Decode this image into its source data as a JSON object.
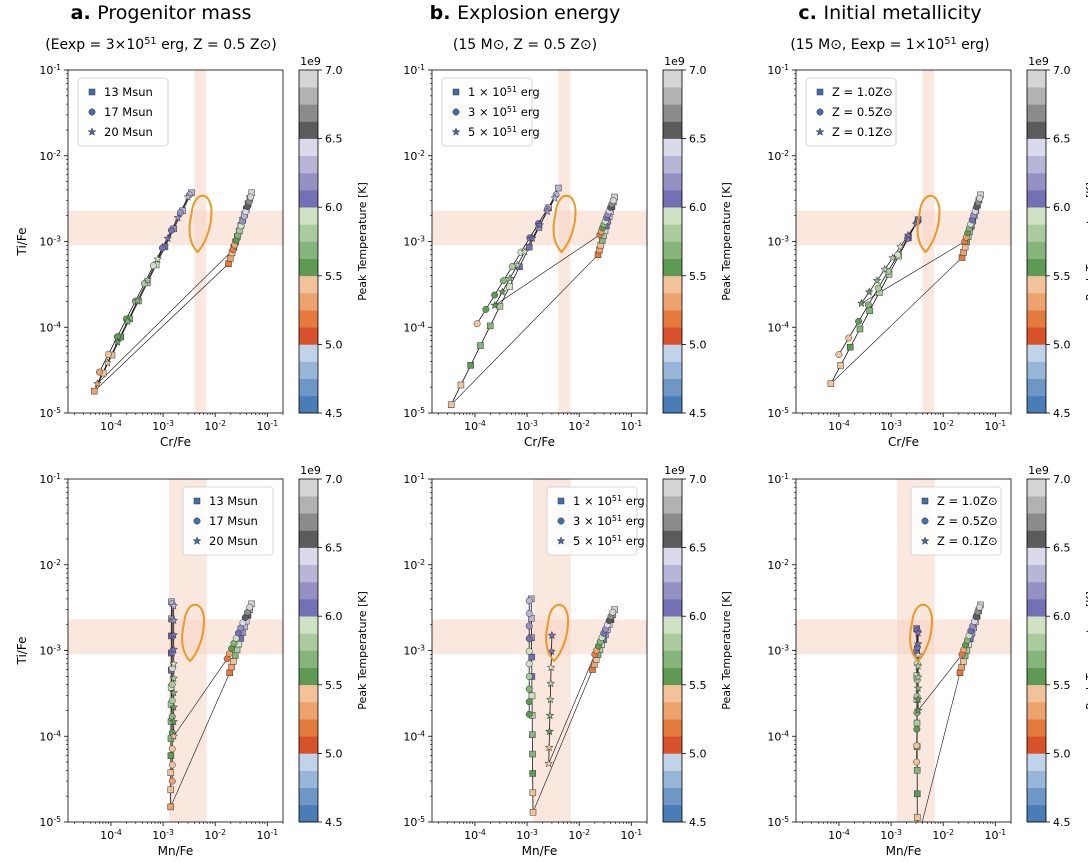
{
  "columns": [
    {
      "letter": "a.",
      "title": "Progenitor mass",
      "subtitle": "(Eexp = 3×10^51 erg, Z = 0.5 Z⊙)"
    },
    {
      "letter": "b.",
      "title": "Explosion energy",
      "subtitle": "(15 M⊙, Z = 0.5 Z⊙)"
    },
    {
      "letter": "c.",
      "title": "Initial metallicity",
      "subtitle": "(15 M⊙, Eexp = 1×10^51 erg)"
    }
  ],
  "colorbar": {
    "label": "Peak Temperature [K]",
    "multiplier": "1e9",
    "min": 4.5,
    "max": 7.0,
    "ticks": [
      "4.5",
      "5.0",
      "5.5",
      "6.0",
      "6.5",
      "7.0"
    ],
    "colors": [
      "#4a7db5",
      "#6f97c6",
      "#97b6d8",
      "#c0d3e8",
      "#d9512a",
      "#e47b3d",
      "#eda36e",
      "#f2c39a",
      "#5e9a56",
      "#85b57b",
      "#a9cb9e",
      "#cfe2c4",
      "#7370b3",
      "#9592c3",
      "#b8b6d6",
      "#dadaeb",
      "#5c5c5c",
      "#8b8b8b",
      "#b2b2b2",
      "#d4d4d4"
    ]
  },
  "legends": [
    [
      "13 Msun",
      "17 Msun",
      "20 Msun"
    ],
    [
      "1 × 10^51 erg",
      "3 × 10^51 erg",
      "5 × 10^51 erg"
    ],
    [
      "Z = 1.0Z⊙",
      "Z = 0.5Z⊙",
      "Z = 0.1Z⊙"
    ]
  ],
  "axes": {
    "ylabel": "Ti/Fe",
    "xlabel_top": "Cr/Fe",
    "xlabel_bottom": "Mn/Fe",
    "y_ticks": [
      "10^-5",
      "10^-4",
      "10^-3",
      "10^-2",
      "10^-1"
    ],
    "x_ticks": [
      "10^-4",
      "10^-3",
      "10^-2",
      "10^-1"
    ]
  },
  "chart_data": [
    {
      "type": "scatter",
      "panel": "a-top",
      "xlabel": "Cr/Fe",
      "ylabel": "Ti/Fe",
      "xscale": "log",
      "yscale": "log",
      "xlim": [
        1.5e-05,
        0.2
      ],
      "ylim": [
        1e-05,
        0.1
      ],
      "series": [
        {
          "name": "13 Msun",
          "marker": "square"
        },
        {
          "name": "17 Msun",
          "marker": "circle"
        },
        {
          "name": "20 Msun",
          "marker": "star"
        }
      ]
    },
    {
      "type": "scatter",
      "panel": "b-top",
      "xlabel": "Cr/Fe",
      "ylabel": "Ti/Fe",
      "xscale": "log",
      "yscale": "log",
      "xlim": [
        1.5e-05,
        0.2
      ],
      "ylim": [
        1e-05,
        0.1
      ],
      "series": [
        {
          "name": "1 × 10^51 erg",
          "marker": "square"
        },
        {
          "name": "3 × 10^51 erg",
          "marker": "circle"
        },
        {
          "name": "5 × 10^51 erg",
          "marker": "star"
        }
      ]
    },
    {
      "type": "scatter",
      "panel": "c-top",
      "xlabel": "Cr/Fe",
      "ylabel": "Ti/Fe",
      "xscale": "log",
      "yscale": "log",
      "xlim": [
        1.5e-05,
        0.2
      ],
      "ylim": [
        1e-05,
        0.1
      ],
      "series": [
        {
          "name": "Z = 1.0Z⊙",
          "marker": "square"
        },
        {
          "name": "Z = 0.5Z⊙",
          "marker": "circle"
        },
        {
          "name": "Z = 0.1Z⊙",
          "marker": "star"
        }
      ]
    },
    {
      "type": "scatter",
      "panel": "a-bottom",
      "xlabel": "Mn/Fe",
      "ylabel": "Ti/Fe",
      "xscale": "log",
      "yscale": "log",
      "xlim": [
        1.5e-05,
        0.2
      ],
      "ylim": [
        1e-05,
        0.1
      ],
      "series": [
        {
          "name": "13 Msun",
          "marker": "square"
        },
        {
          "name": "17 Msun",
          "marker": "circle"
        },
        {
          "name": "20 Msun",
          "marker": "star"
        }
      ]
    },
    {
      "type": "scatter",
      "panel": "b-bottom",
      "xlabel": "Mn/Fe",
      "ylabel": "Ti/Fe",
      "xscale": "log",
      "yscale": "log",
      "xlim": [
        1.5e-05,
        0.2
      ],
      "ylim": [
        1e-05,
        0.1
      ],
      "series": [
        {
          "name": "1 × 10^51 erg",
          "marker": "square"
        },
        {
          "name": "3 × 10^51 erg",
          "marker": "circle"
        },
        {
          "name": "5 × 10^51 erg",
          "marker": "star"
        }
      ]
    },
    {
      "type": "scatter",
      "panel": "c-bottom",
      "xlabel": "Mn/Fe",
      "ylabel": "Ti/Fe",
      "xscale": "log",
      "yscale": "log",
      "xlim": [
        1.5e-05,
        0.2
      ],
      "ylim": [
        1e-05,
        0.1
      ],
      "series": [
        {
          "name": "Z = 1.0Z⊙",
          "marker": "square"
        },
        {
          "name": "Z = 0.5Z⊙",
          "marker": "circle"
        },
        {
          "name": "Z = 0.1Z⊙",
          "marker": "star"
        }
      ]
    }
  ],
  "observed_band": {
    "ti_fe": [
      0.0009,
      0.0023
    ],
    "cr_fe": [
      0.004,
      0.0068
    ],
    "mn_fe": [
      0.0013,
      0.0069
    ]
  }
}
